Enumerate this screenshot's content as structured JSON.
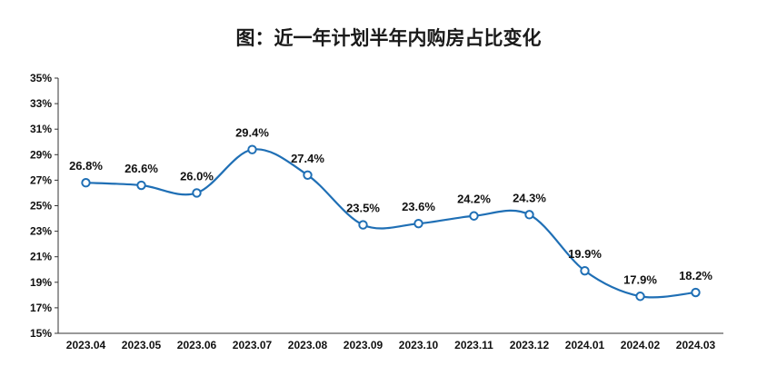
{
  "chart_data": {
    "type": "line",
    "title": "图：近一年计划半年内购房占比变化",
    "xlabel": "",
    "ylabel": "",
    "categories": [
      "2023.04",
      "2023.05",
      "2023.06",
      "2023.07",
      "2023.08",
      "2023.09",
      "2023.10",
      "2023.11",
      "2023.12",
      "2024.01",
      "2024.02",
      "2024.03"
    ],
    "series": [
      {
        "values": [
          26.8,
          26.6,
          26.0,
          29.4,
          27.4,
          23.5,
          23.6,
          24.2,
          24.3,
          19.9,
          17.9,
          18.2
        ],
        "labels": [
          "26.8%",
          "26.6%",
          "26.0%",
          "29.4%",
          "27.4%",
          "23.5%",
          "23.6%",
          "24.2%",
          "24.3%",
          "19.9%",
          "17.9%",
          "18.2%"
        ],
        "color": "#1f6fb5"
      }
    ],
    "ylim": [
      15,
      35
    ],
    "yticks": [
      15,
      17,
      19,
      21,
      23,
      25,
      27,
      29,
      31,
      33,
      35
    ],
    "ytick_labels": [
      "15%",
      "17%",
      "19%",
      "21%",
      "23%",
      "25%",
      "27%",
      "29%",
      "31%",
      "33%",
      "35%"
    ],
    "grid": false,
    "legend": "none",
    "line_style": "smooth",
    "marker": "hollow-circle"
  }
}
